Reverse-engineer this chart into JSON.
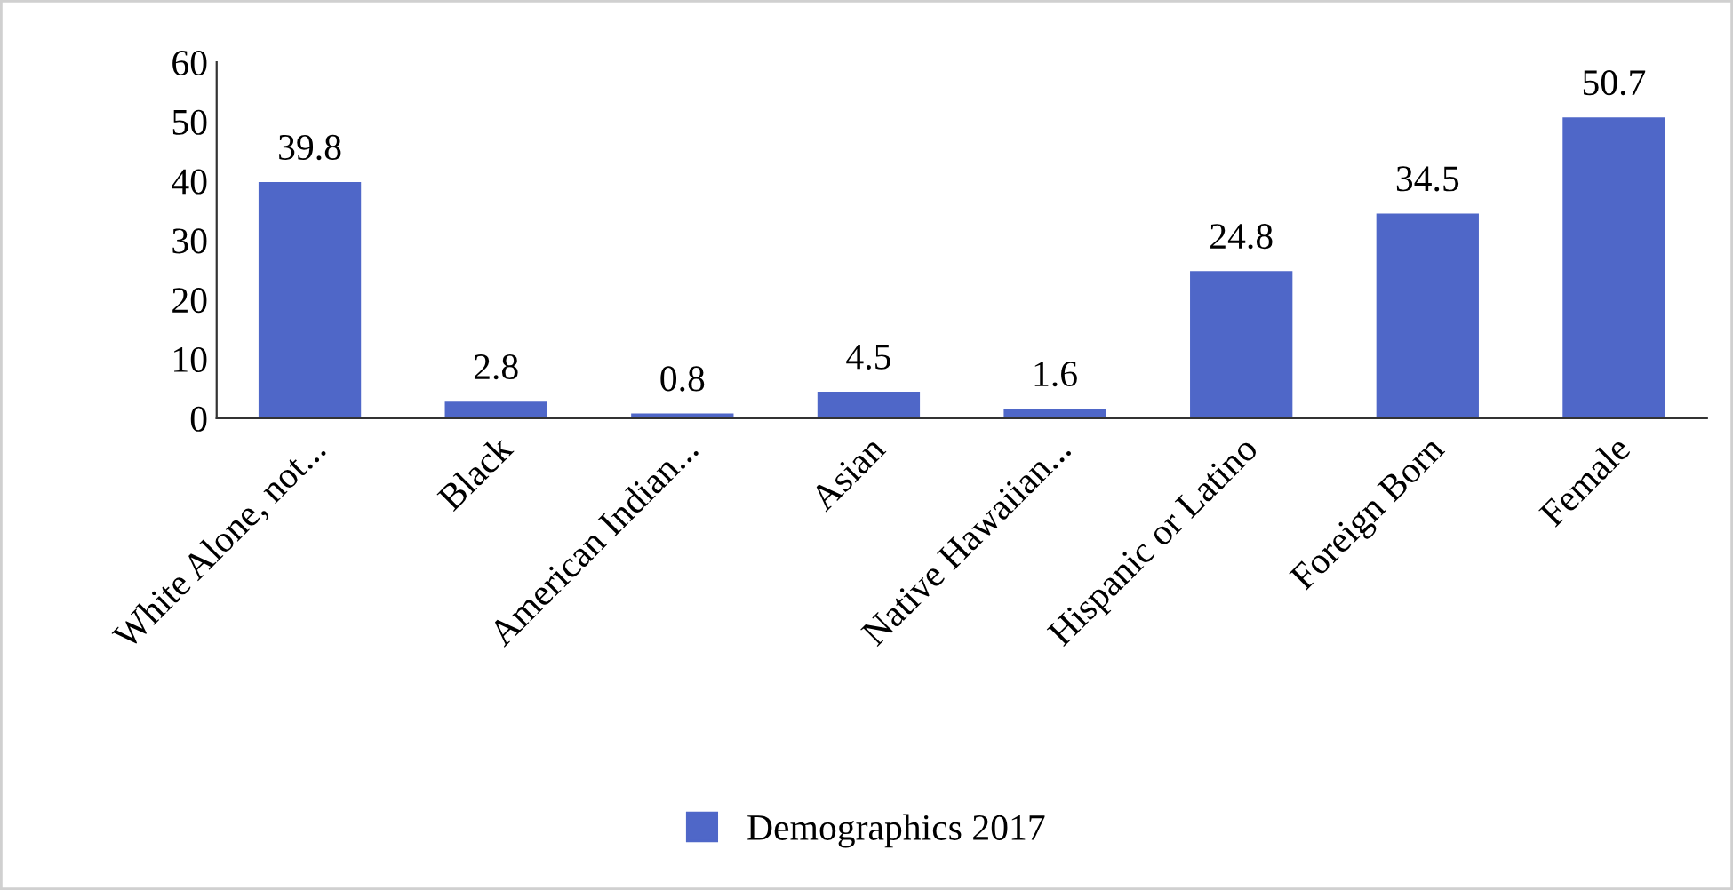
{
  "chart_data": {
    "type": "bar",
    "categories": [
      "White Alone, not...",
      "Black",
      "American Indian...",
      "Asian",
      "Native Hawaiian...",
      "Hispanic or Latino",
      "Foreign Born",
      "Female"
    ],
    "series": [
      {
        "name": "Demographics 2017",
        "color": "#4f67c8",
        "values": [
          39.8,
          2.8,
          0.8,
          4.5,
          1.6,
          24.8,
          34.5,
          50.7
        ]
      }
    ],
    "ylim": [
      0,
      60
    ],
    "yticks": [
      0,
      10,
      20,
      30,
      40,
      50,
      60
    ],
    "data_labels": true,
    "grid": false,
    "legend": "bottom"
  }
}
